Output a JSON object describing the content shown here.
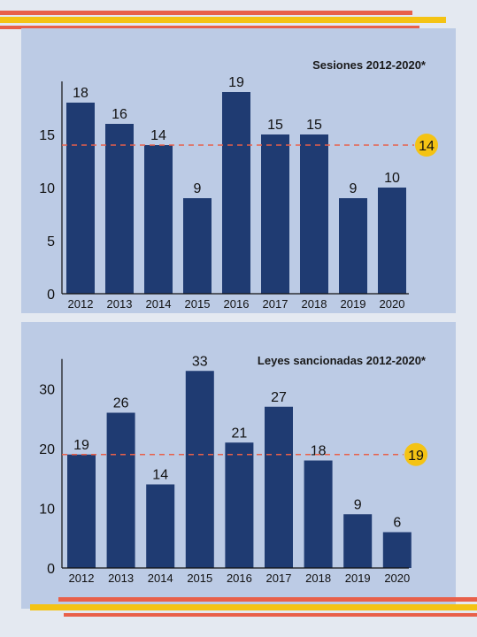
{
  "colors": {
    "background": "#e4e9f1",
    "panel": "#bccbe5",
    "bar": "#1f3b72",
    "average_line": "#e8604a",
    "average_badge": "#f4c314",
    "stripe_orange": "#e8604a",
    "stripe_yellow": "#f4c314"
  },
  "chart_data": [
    {
      "type": "bar",
      "title": "Sesiones 2012-2020*",
      "categories": [
        "2012",
        "2013",
        "2014",
        "2015",
        "2016",
        "2017",
        "2018",
        "2019",
        "2020"
      ],
      "values": [
        18,
        16,
        14,
        9,
        19,
        15,
        15,
        9,
        10
      ],
      "average": 14,
      "yticks": [
        0,
        5,
        10,
        15
      ],
      "ylim": [
        0,
        20
      ],
      "xlabel": "",
      "ylabel": "",
      "grid": false,
      "legend": "none"
    },
    {
      "type": "bar",
      "title": "Leyes sancionadas 2012-2020*",
      "categories": [
        "2012",
        "2013",
        "2014",
        "2015",
        "2016",
        "2017",
        "2018",
        "2019",
        "2020"
      ],
      "values": [
        19,
        26,
        14,
        33,
        21,
        27,
        18,
        9,
        6
      ],
      "average": 19,
      "yticks": [
        0,
        10,
        20,
        30
      ],
      "ylim": [
        0,
        35
      ],
      "xlabel": "",
      "ylabel": "",
      "grid": false,
      "legend": "none"
    }
  ]
}
